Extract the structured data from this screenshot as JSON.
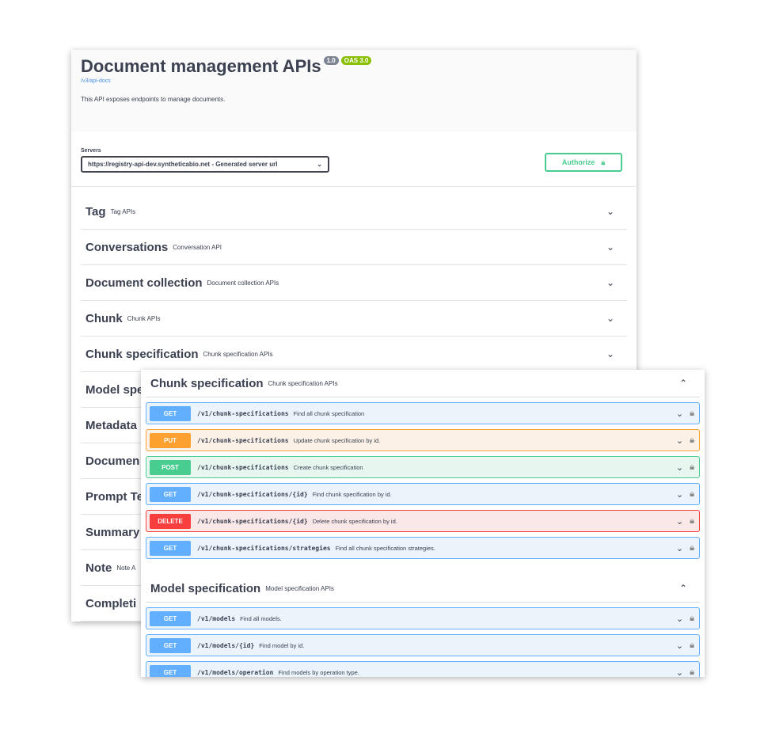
{
  "info": {
    "title": "Document management APIs",
    "version": "1.0",
    "oas": "OAS 3.0",
    "link": "/v3/api-docs",
    "description": "This API exposes endpoints to manage documents."
  },
  "servers": {
    "label": "Servers",
    "selected": "https://registry-api-dev.syntheticabio.net - Generated server url"
  },
  "authorize": {
    "label": "Authorize"
  },
  "tags": [
    {
      "name": "Tag",
      "desc": "Tag APIs"
    },
    {
      "name": "Conversations",
      "desc": "Conversation API"
    },
    {
      "name": "Document collection",
      "desc": "Document collection APIs"
    },
    {
      "name": "Chunk",
      "desc": "Chunk APIs"
    },
    {
      "name": "Chunk specification",
      "desc": "Chunk specification APIs"
    },
    {
      "name": "Model spe",
      "desc": ""
    },
    {
      "name": "Metadata",
      "desc": ""
    },
    {
      "name": "Documen",
      "desc": ""
    },
    {
      "name": "Prompt Te",
      "desc": ""
    },
    {
      "name": "Summary",
      "desc": ""
    },
    {
      "name": "Note",
      "desc": "Note A"
    },
    {
      "name": "Completi",
      "desc": ""
    }
  ],
  "sections": [
    {
      "name": "Chunk specification",
      "desc": "Chunk specification APIs",
      "ops": [
        {
          "method": "GET",
          "path": "/v1/chunk-specifications",
          "desc": "Find all chunk specification"
        },
        {
          "method": "PUT",
          "path": "/v1/chunk-specifications",
          "desc": "Update chunk specification by id."
        },
        {
          "method": "POST",
          "path": "/v1/chunk-specifications",
          "desc": "Create chunk specification"
        },
        {
          "method": "GET",
          "path": "/v1/chunk-specifications/{id}",
          "desc": "Find chunk specification by id."
        },
        {
          "method": "DELETE",
          "path": "/v1/chunk-specifications/{id}",
          "desc": "Delete chunk specification by id."
        },
        {
          "method": "GET",
          "path": "/v1/chunk-specifications/strategies",
          "desc": "Find all chunk specification strategies."
        }
      ]
    },
    {
      "name": "Model specification",
      "desc": "Model specification APIs",
      "ops": [
        {
          "method": "GET",
          "path": "/v1/models",
          "desc": "Find all models."
        },
        {
          "method": "GET",
          "path": "/v1/models/{id}",
          "desc": "Find model by id."
        },
        {
          "method": "GET",
          "path": "/v1/models/operation",
          "desc": "Find models by operation type."
        }
      ]
    }
  ],
  "colors": {
    "get": "#61affe",
    "put": "#fca130",
    "post": "#49cc90",
    "delete": "#f93e3e"
  }
}
